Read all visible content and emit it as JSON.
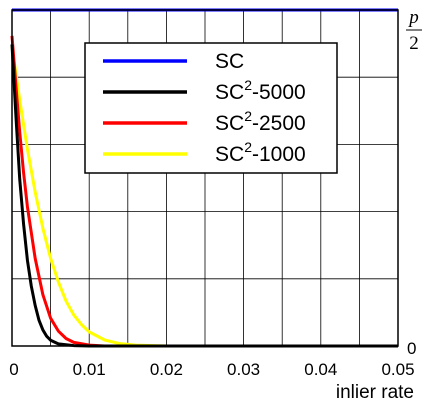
{
  "chart_data": {
    "type": "line",
    "xlabel": "inlier rate",
    "xlim": [
      0,
      0.05
    ],
    "ylim": [
      0,
      1.5708
    ],
    "grid": true,
    "legend_position": "top-right",
    "x_ticks": [
      "0",
      "0.01",
      "0.02",
      "0.03",
      "0.04",
      "0.05"
    ],
    "y_ticks": [
      {
        "label": "0",
        "value": 0
      },
      {
        "label_numerator": "p",
        "label_denominator": "2",
        "value": 1.5708
      }
    ],
    "series": [
      {
        "name": "SC",
        "color": "#0000ff",
        "x": [
          0,
          0.05
        ],
        "y": [
          1.5708,
          1.5708
        ]
      },
      {
        "name": "SC",
        "sup": "2",
        "suffix": "-5000",
        "color": "#000000",
        "x": [
          0,
          0.0005,
          0.001,
          0.0015,
          0.002,
          0.0025,
          0.003,
          0.0035,
          0.004,
          0.0045,
          0.005,
          0.006,
          0.008,
          0.01,
          0.05
        ],
        "y": [
          1.41,
          1.08,
          0.78,
          0.57,
          0.4,
          0.28,
          0.19,
          0.12,
          0.075,
          0.045,
          0.027,
          0.01,
          0.002,
          0.0,
          0.0
        ]
      },
      {
        "name": "SC",
        "sup": "2",
        "suffix": "-2500",
        "color": "#ff0000",
        "x": [
          0,
          0.0005,
          0.001,
          0.0015,
          0.002,
          0.003,
          0.004,
          0.005,
          0.006,
          0.007,
          0.008,
          0.01,
          0.012,
          0.05
        ],
        "y": [
          1.45,
          1.22,
          1.0,
          0.81,
          0.65,
          0.41,
          0.24,
          0.13,
          0.07,
          0.035,
          0.017,
          0.004,
          0.0,
          0.0
        ]
      },
      {
        "name": "SC",
        "sup": "2",
        "suffix": "-1000",
        "color": "#ffff00",
        "x": [
          0,
          0.001,
          0.002,
          0.003,
          0.004,
          0.005,
          0.006,
          0.007,
          0.008,
          0.009,
          0.01,
          0.012,
          0.014,
          0.016,
          0.02,
          0.05
        ],
        "y": [
          1.4,
          1.15,
          0.92,
          0.72,
          0.55,
          0.41,
          0.3,
          0.21,
          0.145,
          0.1,
          0.066,
          0.028,
          0.011,
          0.004,
          0.0,
          0.0
        ]
      }
    ]
  }
}
